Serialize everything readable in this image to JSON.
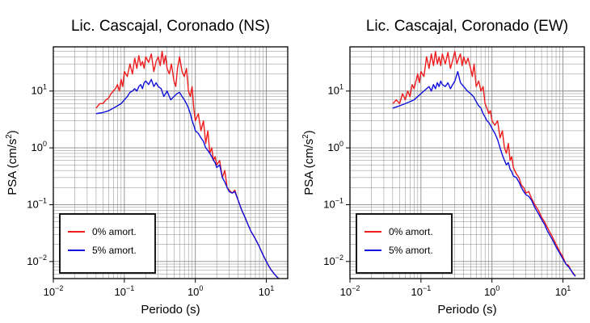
{
  "colors": {
    "undamped": "#ee1c1c",
    "damped": "#1010dd",
    "grid": "#8a8a8a"
  },
  "chart_data": [
    {
      "type": "line",
      "title": "Lic. Cascajal, Coronado (NS)",
      "xlabel": "Periodo (s)",
      "ylabel": {
        "main": "PSA (cm/s",
        "exp": "2",
        "close": ")"
      },
      "xscale": "log",
      "yscale": "log",
      "xlim": [
        0.01,
        20
      ],
      "ylim": [
        0.005,
        60
      ],
      "grid": true,
      "legend_position": "bottom-left",
      "x_ticks": [
        {
          "base": "10",
          "exp": "−2",
          "value": 0.01
        },
        {
          "base": "10",
          "exp": "−1",
          "value": 0.1
        },
        {
          "base": "10",
          "exp": "0",
          "value": 1
        },
        {
          "base": "10",
          "exp": "1",
          "value": 10
        }
      ],
      "y_ticks": [
        {
          "base": "10",
          "exp": "−2",
          "value": 0.01
        },
        {
          "base": "10",
          "exp": "−1",
          "value": 0.1
        },
        {
          "base": "10",
          "exp": "0",
          "value": 1
        },
        {
          "base": "10",
          "exp": "1",
          "value": 10
        }
      ],
      "series": [
        {
          "name": "0% amort.",
          "color": "#ee1c1c",
          "x": [
            0.04,
            0.045,
            0.05,
            0.055,
            0.06,
            0.065,
            0.07,
            0.075,
            0.08,
            0.085,
            0.09,
            0.095,
            0.1,
            0.11,
            0.12,
            0.13,
            0.14,
            0.15,
            0.16,
            0.17,
            0.18,
            0.19,
            0.2,
            0.22,
            0.24,
            0.26,
            0.28,
            0.3,
            0.32,
            0.34,
            0.36,
            0.38,
            0.4,
            0.43,
            0.46,
            0.5,
            0.53,
            0.56,
            0.6,
            0.65,
            0.7,
            0.75,
            0.8,
            0.85,
            0.9,
            0.95,
            1.0,
            1.1,
            1.2,
            1.3,
            1.4,
            1.5,
            1.6,
            1.7,
            1.8,
            1.9,
            2.0,
            2.2,
            2.4,
            2.6,
            2.8,
            3.0,
            3.3,
            3.6,
            4.0,
            4.5,
            5.0,
            5.5,
            6.0,
            7.0,
            8.0,
            9.0,
            10.0,
            11.0,
            12.0,
            13.0,
            14.0,
            15.0
          ],
          "y": [
            5.0,
            6.0,
            6.0,
            7.0,
            7.5,
            9.0,
            10.0,
            11.0,
            13.0,
            10.0,
            16.0,
            12.0,
            22.0,
            18.0,
            30.0,
            20.0,
            38.0,
            25.0,
            42.0,
            28.0,
            33.0,
            25.0,
            40.0,
            32.0,
            45.0,
            22.0,
            33.0,
            40.0,
            28.0,
            50.0,
            30.0,
            42.0,
            25.0,
            20.0,
            30.0,
            15.0,
            12.0,
            25.0,
            40.0,
            22.0,
            18.0,
            25.0,
            10.0,
            8.0,
            12.0,
            5.0,
            3.0,
            4.0,
            2.0,
            3.0,
            1.2,
            2.0,
            0.8,
            1.0,
            0.6,
            0.7,
            0.5,
            0.6,
            0.3,
            0.4,
            0.2,
            0.18,
            0.16,
            0.18,
            0.12,
            0.08,
            0.06,
            0.045,
            0.035,
            0.025,
            0.018,
            0.013,
            0.01,
            0.008,
            0.0068,
            0.006,
            0.0054,
            0.005
          ]
        },
        {
          "name": "5% amort.",
          "color": "#1010dd",
          "x": [
            0.04,
            0.05,
            0.06,
            0.07,
            0.08,
            0.09,
            0.1,
            0.11,
            0.12,
            0.13,
            0.14,
            0.15,
            0.16,
            0.17,
            0.18,
            0.19,
            0.2,
            0.22,
            0.24,
            0.26,
            0.28,
            0.3,
            0.33,
            0.36,
            0.4,
            0.45,
            0.5,
            0.55,
            0.6,
            0.65,
            0.7,
            0.75,
            0.8,
            0.85,
            0.9,
            0.95,
            1.0,
            1.1,
            1.2,
            1.3,
            1.4,
            1.5,
            1.6,
            1.7,
            1.8,
            1.9,
            2.0,
            2.2,
            2.4,
            2.6,
            2.8,
            3.0,
            3.3,
            3.6,
            4.0,
            4.5,
            5.0,
            5.5,
            6.0,
            7.0,
            8.0,
            9.0,
            10.0,
            11.0,
            12.0,
            13.0,
            14.0,
            15.0
          ],
          "y": [
            4.0,
            4.2,
            4.5,
            5.0,
            5.5,
            6.0,
            7.0,
            8.0,
            9.5,
            10.0,
            11.0,
            10.0,
            12.0,
            13.0,
            11.0,
            14.0,
            15.0,
            13.0,
            16.0,
            12.0,
            14.0,
            12.0,
            11.0,
            8.0,
            10.0,
            7.0,
            8.0,
            9.0,
            9.5,
            8.0,
            7.0,
            6.0,
            5.0,
            4.0,
            3.0,
            2.5,
            2.0,
            1.8,
            1.5,
            1.3,
            1.0,
            0.9,
            0.8,
            0.7,
            0.6,
            0.55,
            0.45,
            0.5,
            0.3,
            0.25,
            0.2,
            0.17,
            0.16,
            0.17,
            0.12,
            0.08,
            0.06,
            0.045,
            0.035,
            0.025,
            0.018,
            0.013,
            0.01,
            0.008,
            0.0068,
            0.006,
            0.0054,
            0.005
          ]
        }
      ]
    },
    {
      "type": "line",
      "title": "Lic. Cascajal, Coronado (EW)",
      "xlabel": "Periodo (s)",
      "ylabel": {
        "main": "PSA (cm/s",
        "exp": "2",
        "close": ")"
      },
      "xscale": "log",
      "yscale": "log",
      "xlim": [
        0.01,
        20
      ],
      "ylim": [
        0.005,
        60
      ],
      "grid": true,
      "legend_position": "bottom-left",
      "x_ticks": [
        {
          "base": "10",
          "exp": "−2",
          "value": 0.01
        },
        {
          "base": "10",
          "exp": "−1",
          "value": 0.1
        },
        {
          "base": "10",
          "exp": "0",
          "value": 1
        },
        {
          "base": "10",
          "exp": "1",
          "value": 10
        }
      ],
      "y_ticks": [
        {
          "base": "10",
          "exp": "−2",
          "value": 0.01
        },
        {
          "base": "10",
          "exp": "−1",
          "value": 0.1
        },
        {
          "base": "10",
          "exp": "0",
          "value": 1
        },
        {
          "base": "10",
          "exp": "1",
          "value": 10
        }
      ],
      "series": [
        {
          "name": "0% amort.",
          "color": "#ee1c1c",
          "x": [
            0.04,
            0.045,
            0.05,
            0.055,
            0.06,
            0.065,
            0.07,
            0.075,
            0.08,
            0.085,
            0.09,
            0.095,
            0.1,
            0.11,
            0.12,
            0.13,
            0.14,
            0.15,
            0.16,
            0.17,
            0.18,
            0.19,
            0.2,
            0.22,
            0.24,
            0.26,
            0.28,
            0.3,
            0.32,
            0.34,
            0.36,
            0.38,
            0.4,
            0.43,
            0.46,
            0.5,
            0.53,
            0.56,
            0.6,
            0.65,
            0.7,
            0.75,
            0.8,
            0.85,
            0.9,
            0.95,
            1.0,
            1.1,
            1.2,
            1.3,
            1.4,
            1.5,
            1.6,
            1.7,
            1.8,
            1.9,
            2.0,
            2.2,
            2.4,
            2.6,
            2.8,
            3.0,
            3.3,
            3.6,
            4.0,
            4.5,
            5.0,
            5.5,
            6.0,
            7.0,
            8.0,
            9.0,
            10.0,
            11.0,
            12.0,
            13.0,
            14.0,
            15.0
          ],
          "y": [
            6.0,
            7.0,
            6.0,
            9.0,
            7.0,
            10.0,
            8.0,
            13.0,
            11.0,
            15.0,
            20.0,
            14.0,
            22.0,
            18.0,
            40.0,
            25.0,
            45.0,
            28.0,
            50.0,
            30.0,
            40.0,
            28.0,
            45.0,
            30.0,
            48.0,
            25.0,
            35.0,
            50.0,
            30.0,
            38.0,
            45.0,
            28.0,
            40.0,
            30.0,
            38.0,
            25.0,
            18.0,
            30.0,
            12.0,
            15.0,
            10.0,
            12.0,
            6.0,
            5.0,
            4.0,
            4.5,
            3.0,
            2.5,
            3.0,
            1.5,
            2.0,
            1.0,
            0.8,
            1.2,
            0.6,
            0.7,
            0.45,
            0.35,
            0.3,
            0.22,
            0.2,
            0.16,
            0.17,
            0.13,
            0.1,
            0.08,
            0.06,
            0.05,
            0.04,
            0.028,
            0.02,
            0.015,
            0.012,
            0.009,
            0.0085,
            0.007,
            0.0062,
            0.0055
          ]
        },
        {
          "name": "5% amort.",
          "color": "#1010dd",
          "x": [
            0.04,
            0.05,
            0.06,
            0.07,
            0.08,
            0.09,
            0.1,
            0.11,
            0.12,
            0.13,
            0.14,
            0.15,
            0.16,
            0.17,
            0.18,
            0.19,
            0.2,
            0.22,
            0.24,
            0.26,
            0.28,
            0.3,
            0.33,
            0.36,
            0.4,
            0.45,
            0.5,
            0.55,
            0.6,
            0.65,
            0.7,
            0.75,
            0.8,
            0.85,
            0.9,
            0.95,
            1.0,
            1.1,
            1.2,
            1.3,
            1.4,
            1.5,
            1.6,
            1.7,
            1.8,
            1.9,
            2.0,
            2.2,
            2.4,
            2.6,
            2.8,
            3.0,
            3.3,
            3.6,
            4.0,
            4.5,
            5.0,
            5.5,
            6.0,
            7.0,
            8.0,
            9.0,
            10.0,
            11.0,
            12.0,
            13.0,
            14.0,
            15.0
          ],
          "y": [
            5.0,
            5.5,
            6.0,
            6.5,
            7.0,
            8.0,
            9.0,
            10.0,
            11.0,
            12.0,
            10.0,
            13.0,
            11.0,
            14.0,
            12.0,
            15.0,
            13.0,
            12.0,
            14.0,
            11.0,
            13.0,
            15.0,
            22.0,
            14.0,
            12.0,
            10.0,
            9.0,
            8.0,
            6.5,
            5.5,
            5.0,
            4.0,
            3.5,
            3.0,
            2.8,
            2.5,
            2.2,
            1.8,
            1.4,
            1.0,
            0.75,
            0.6,
            0.5,
            0.55,
            0.42,
            0.38,
            0.32,
            0.3,
            0.25,
            0.2,
            0.17,
            0.15,
            0.14,
            0.12,
            0.09,
            0.07,
            0.055,
            0.045,
            0.035,
            0.025,
            0.018,
            0.014,
            0.011,
            0.009,
            0.008,
            0.007,
            0.006,
            0.0055
          ]
        }
      ]
    }
  ]
}
